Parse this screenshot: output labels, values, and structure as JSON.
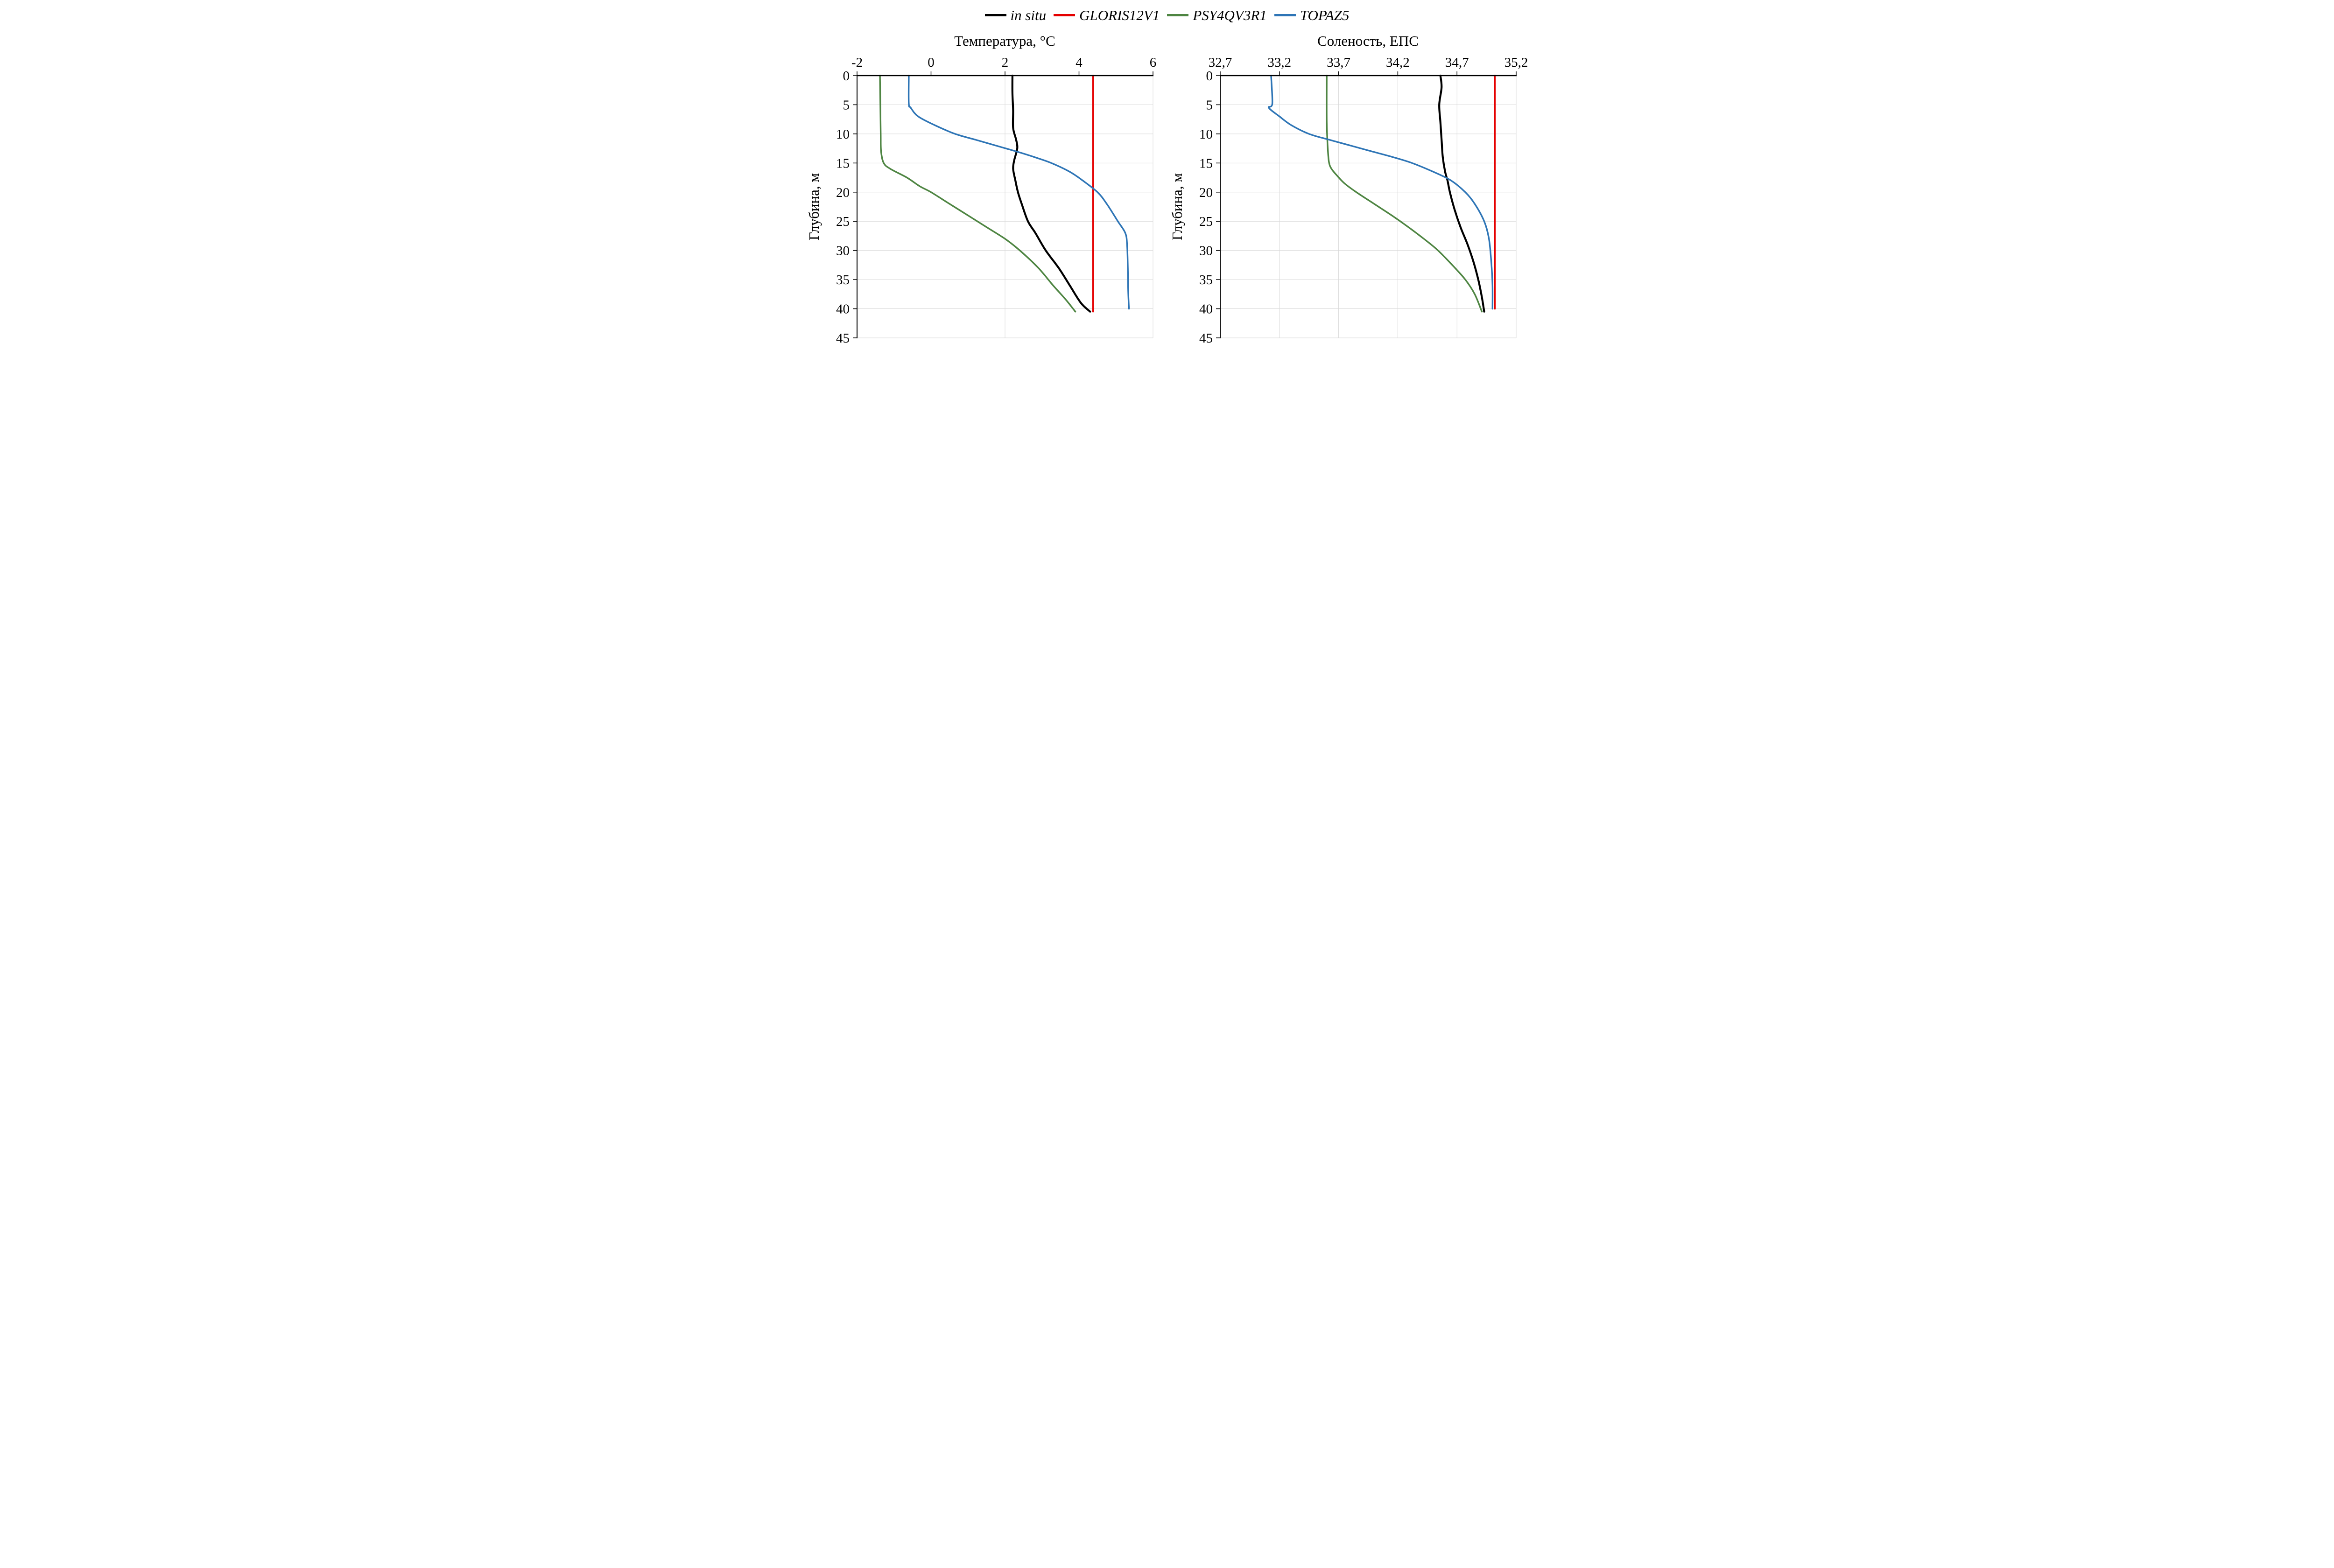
{
  "legend": {
    "position": "top",
    "items": [
      {
        "label": "in situ",
        "color": "#000000"
      },
      {
        "label": "GLORIS12V1",
        "color": "#e50000"
      },
      {
        "label": "PSY4QV3R1",
        "color": "#4e8542"
      },
      {
        "label": "TOPAZ5",
        "color": "#2e75b6"
      }
    ]
  },
  "chart_data": [
    {
      "type": "line",
      "title": "Температура, °C",
      "xlabel": "Температура, °C",
      "ylabel": "Глубина, м",
      "xlim": [
        -2,
        6
      ],
      "ylim": [
        0,
        45
      ],
      "grid": true,
      "x_axis_position": "top",
      "y_axis_inverted": true,
      "x_ticks": [
        {
          "value": -2,
          "label": "-2"
        },
        {
          "value": 0,
          "label": "0"
        },
        {
          "value": 2,
          "label": "2"
        },
        {
          "value": 4,
          "label": "4"
        },
        {
          "value": 6,
          "label": "6"
        }
      ],
      "y_ticks": [
        {
          "value": 0,
          "label": "0"
        },
        {
          "value": 5,
          "label": "5"
        },
        {
          "value": 10,
          "label": "10"
        },
        {
          "value": 15,
          "label": "15"
        },
        {
          "value": 20,
          "label": "20"
        },
        {
          "value": 25,
          "label": "25"
        },
        {
          "value": 30,
          "label": "30"
        },
        {
          "value": 35,
          "label": "35"
        },
        {
          "value": 40,
          "label": "40"
        },
        {
          "value": 45,
          "label": "45"
        }
      ],
      "series": [
        {
          "name": "in situ",
          "color": "#000000",
          "width": 4.2,
          "points": [
            [
              2.2,
              0
            ],
            [
              2.2,
              3
            ],
            [
              2.22,
              6
            ],
            [
              2.22,
              9
            ],
            [
              2.3,
              11
            ],
            [
              2.33,
              12.5
            ],
            [
              2.25,
              14.5
            ],
            [
              2.22,
              16
            ],
            [
              2.28,
              18
            ],
            [
              2.35,
              20
            ],
            [
              2.45,
              22
            ],
            [
              2.62,
              25
            ],
            [
              2.82,
              27
            ],
            [
              3.1,
              30
            ],
            [
              3.45,
              33
            ],
            [
              3.75,
              36
            ],
            [
              4.05,
              39
            ],
            [
              4.3,
              40.5
            ]
          ]
        },
        {
          "name": "GLORIS12V1",
          "color": "#e50000",
          "width": 3.4,
          "points": [
            [
              4.38,
              0
            ],
            [
              4.38,
              40.5
            ]
          ]
        },
        {
          "name": "PSY4QV3R1",
          "color": "#4e8542",
          "width": 3.4,
          "points": [
            [
              -1.38,
              0
            ],
            [
              -1.37,
              5
            ],
            [
              -1.36,
              10
            ],
            [
              -1.35,
              13
            ],
            [
              -1.28,
              15
            ],
            [
              -1.1,
              16
            ],
            [
              -0.65,
              17.5
            ],
            [
              -0.3,
              19
            ],
            [
              0.0,
              20
            ],
            [
              0.5,
              22
            ],
            [
              1.0,
              24
            ],
            [
              1.5,
              26
            ],
            [
              2.0,
              28
            ],
            [
              2.4,
              30
            ],
            [
              2.9,
              33
            ],
            [
              3.3,
              36
            ],
            [
              3.65,
              38.5
            ],
            [
              3.9,
              40.5
            ]
          ]
        },
        {
          "name": "TOPAZ5",
          "color": "#2e75b6",
          "width": 3.4,
          "points": [
            [
              -0.6,
              0
            ],
            [
              -0.6,
              4.8
            ],
            [
              -0.55,
              5.5
            ],
            [
              -0.35,
              7
            ],
            [
              0.1,
              8.5
            ],
            [
              0.65,
              10
            ],
            [
              1.2,
              11
            ],
            [
              1.75,
              12
            ],
            [
              2.3,
              13
            ],
            [
              2.8,
              14
            ],
            [
              3.25,
              15
            ],
            [
              3.75,
              16.5
            ],
            [
              4.1,
              18
            ],
            [
              4.5,
              20
            ],
            [
              4.75,
              22
            ],
            [
              5.05,
              25
            ],
            [
              5.25,
              27
            ],
            [
              5.3,
              29
            ],
            [
              5.32,
              33
            ],
            [
              5.33,
              37
            ],
            [
              5.35,
              40
            ]
          ]
        }
      ]
    },
    {
      "type": "line",
      "title": "Соленость, ЕПС",
      "xlabel": "Соленость, ЕПС",
      "ylabel": "Глубина, м",
      "xlim": [
        32.7,
        35.2
      ],
      "ylim": [
        0,
        45
      ],
      "grid": true,
      "x_axis_position": "top",
      "y_axis_inverted": true,
      "x_ticks": [
        {
          "value": 32.7,
          "label": "32,7"
        },
        {
          "value": 33.2,
          "label": "33,2"
        },
        {
          "value": 33.7,
          "label": "33,7"
        },
        {
          "value": 34.2,
          "label": "34,2"
        },
        {
          "value": 34.7,
          "label": "34,7"
        },
        {
          "value": 35.2,
          "label": "35,2"
        }
      ],
      "y_ticks": [
        {
          "value": 0,
          "label": "0"
        },
        {
          "value": 5,
          "label": "5"
        },
        {
          "value": 10,
          "label": "10"
        },
        {
          "value": 15,
          "label": "15"
        },
        {
          "value": 20,
          "label": "20"
        },
        {
          "value": 25,
          "label": "25"
        },
        {
          "value": 30,
          "label": "30"
        },
        {
          "value": 35,
          "label": "35"
        },
        {
          "value": 40,
          "label": "40"
        },
        {
          "value": 45,
          "label": "45"
        }
      ],
      "series": [
        {
          "name": "in situ",
          "color": "#000000",
          "width": 4.2,
          "points": [
            [
              34.56,
              0
            ],
            [
              34.57,
              2
            ],
            [
              34.55,
              5
            ],
            [
              34.56,
              8
            ],
            [
              34.57,
              11
            ],
            [
              34.58,
              14
            ],
            [
              34.6,
              16.5
            ],
            [
              34.62,
              18
            ],
            [
              34.64,
              20
            ],
            [
              34.68,
              23
            ],
            [
              34.73,
              26
            ],
            [
              34.79,
              29
            ],
            [
              34.84,
              32
            ],
            [
              34.88,
              35
            ],
            [
              34.91,
              38
            ],
            [
              34.93,
              40.5
            ]
          ]
        },
        {
          "name": "GLORIS12V1",
          "color": "#e50000",
          "width": 3.4,
          "points": [
            [
              35.02,
              0
            ],
            [
              35.02,
              40
            ]
          ]
        },
        {
          "name": "PSY4QV3R1",
          "color": "#4e8542",
          "width": 3.4,
          "points": [
            [
              33.6,
              0
            ],
            [
              33.6,
              8
            ],
            [
              33.61,
              13
            ],
            [
              33.62,
              15
            ],
            [
              33.64,
              16
            ],
            [
              33.68,
              17
            ],
            [
              33.75,
              18.5
            ],
            [
              33.85,
              20
            ],
            [
              34.0,
              22
            ],
            [
              34.15,
              24
            ],
            [
              34.29,
              26
            ],
            [
              34.42,
              28
            ],
            [
              34.54,
              30
            ],
            [
              34.66,
              32.5
            ],
            [
              34.77,
              35
            ],
            [
              34.85,
              37.5
            ],
            [
              34.91,
              40.5
            ]
          ]
        },
        {
          "name": "TOPAZ5",
          "color": "#2e75b6",
          "width": 3.4,
          "points": [
            [
              33.13,
              0
            ],
            [
              33.14,
              4.8
            ],
            [
              33.11,
              5.5
            ],
            [
              33.2,
              7
            ],
            [
              33.3,
              8.5
            ],
            [
              33.45,
              10
            ],
            [
              33.62,
              11
            ],
            [
              33.8,
              12
            ],
            [
              33.98,
              13
            ],
            [
              34.16,
              14
            ],
            [
              34.32,
              15
            ],
            [
              34.5,
              16.5
            ],
            [
              34.65,
              18
            ],
            [
              34.77,
              20
            ],
            [
              34.85,
              22
            ],
            [
              34.93,
              25
            ],
            [
              34.97,
              28
            ],
            [
              34.99,
              32
            ],
            [
              35.0,
              36
            ],
            [
              35.0,
              40
            ]
          ]
        }
      ]
    }
  ]
}
